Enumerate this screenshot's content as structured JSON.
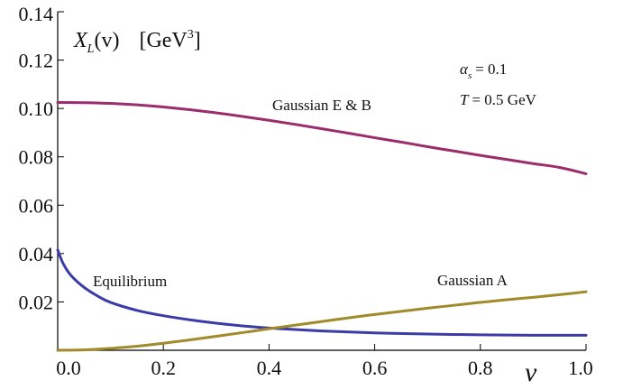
{
  "chart_data": {
    "type": "line",
    "title": "",
    "ylabel_main": "X",
    "ylabel_sub": "L",
    "ylabel_arg": "(v)",
    "ylabel_unit_open": "[GeV",
    "ylabel_unit_exp": "3",
    "ylabel_unit_close": "]",
    "xlabel": "v",
    "xlim": [
      0.0,
      1.0
    ],
    "ylim": [
      0.0,
      0.14
    ],
    "x_ticks": [
      0.0,
      0.2,
      0.4,
      0.6,
      0.8,
      1.0
    ],
    "x_tick_labels": [
      "0.0",
      "0.2",
      "0.4",
      "0.6",
      "0.8",
      "1.0"
    ],
    "y_ticks": [
      0.02,
      0.04,
      0.06,
      0.08,
      0.1,
      0.12,
      0.14
    ],
    "y_tick_labels": [
      "0.02",
      "0.04",
      "0.06",
      "0.08",
      "0.10",
      "0.12",
      "0.14"
    ],
    "grid": false,
    "params": {
      "alpha_symbol": "α",
      "alpha_sub": "s",
      "alpha_value": "= 0.1",
      "T_symbol": "T",
      "T_value": "= 0.5  GeV"
    },
    "series": [
      {
        "name": "Gaussian E & B",
        "color": "#9b2d6e",
        "x": [
          0.0,
          0.05,
          0.1,
          0.15,
          0.2,
          0.25,
          0.3,
          0.35,
          0.4,
          0.45,
          0.5,
          0.55,
          0.6,
          0.65,
          0.7,
          0.75,
          0.8,
          0.85,
          0.9,
          0.95,
          1.0
        ],
        "y": [
          0.1025,
          0.1024,
          0.1021,
          0.1015,
          0.1006,
          0.0995,
          0.0982,
          0.0967,
          0.0951,
          0.0934,
          0.0916,
          0.0898,
          0.0879,
          0.0861,
          0.0842,
          0.0824,
          0.0806,
          0.0789,
          0.0772,
          0.0756,
          0.073
        ]
      },
      {
        "name": "Equilibrium",
        "color": "#3b3ba8",
        "x": [
          0.0,
          0.01,
          0.025,
          0.05,
          0.075,
          0.1,
          0.15,
          0.2,
          0.25,
          0.3,
          0.35,
          0.4,
          0.5,
          0.6,
          0.7,
          0.8,
          0.9,
          1.0
        ],
        "y": [
          0.0415,
          0.036,
          0.031,
          0.026,
          0.0225,
          0.0198,
          0.0165,
          0.0143,
          0.0126,
          0.0112,
          0.0101,
          0.0092,
          0.008,
          0.0072,
          0.0067,
          0.0064,
          0.0062,
          0.0062
        ]
      },
      {
        "name": "Gaussian A",
        "color": "#a08a2a",
        "x": [
          0.0,
          0.05,
          0.1,
          0.15,
          0.2,
          0.25,
          0.3,
          0.35,
          0.4,
          0.45,
          0.5,
          0.55,
          0.6,
          0.65,
          0.7,
          0.75,
          0.8,
          0.85,
          0.9,
          0.95,
          1.0
        ],
        "y": [
          0.0,
          0.0002,
          0.0008,
          0.0017,
          0.0029,
          0.0043,
          0.0058,
          0.0073,
          0.0089,
          0.0104,
          0.0119,
          0.0134,
          0.0148,
          0.0161,
          0.0174,
          0.0186,
          0.0198,
          0.0209,
          0.0219,
          0.023,
          0.0242
        ]
      }
    ],
    "annotations": [
      {
        "text": "Gaussian E & B",
        "series": 0
      },
      {
        "text": "Equilibrium",
        "series": 1
      },
      {
        "text": "Gaussian A",
        "series": 2
      }
    ]
  }
}
